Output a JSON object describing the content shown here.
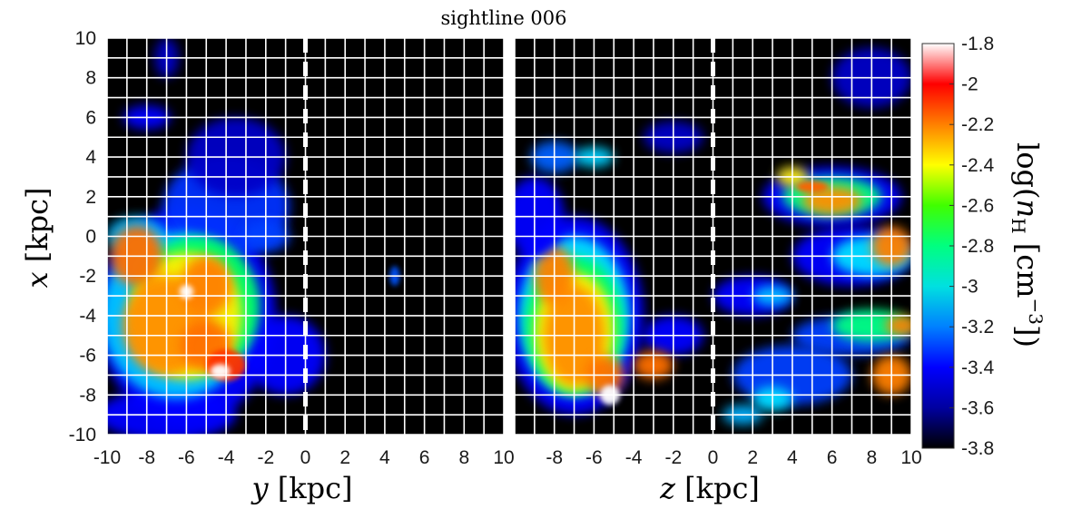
{
  "title": "sightline 006",
  "chart_data": [
    {
      "type": "heatmap",
      "name": "left",
      "xlabel": "y [kpc]",
      "xlabel_var": "y",
      "xlabel_unit": " [kpc]",
      "ylabel": "x [kpc]",
      "ylabel_var": "x",
      "ylabel_unit": " [kpc]",
      "xlim": [
        -10,
        10
      ],
      "ylim": [
        -10,
        10
      ],
      "xticks": [
        "-10",
        "-8",
        "-6",
        "-4",
        "-2",
        "0",
        "2",
        "4",
        "6",
        "8",
        "10"
      ],
      "yticks": [
        "10",
        "8",
        "6",
        "4",
        "2",
        "0",
        "-2",
        "-4",
        "-6",
        "-8",
        "-10"
      ],
      "grid": true,
      "sightline_position": 0
    },
    {
      "type": "heatmap",
      "name": "right",
      "xlabel": "z [kpc]",
      "xlabel_var": "z",
      "xlabel_unit": " [kpc]",
      "xlim": [
        -10,
        10
      ],
      "ylim": [
        -10,
        10
      ],
      "xticks": [
        "-8",
        "-6",
        "-4",
        "-2",
        "0",
        "2",
        "4",
        "6",
        "8",
        "10"
      ],
      "grid": true,
      "sightline_position": 0
    }
  ],
  "colorbar": {
    "label": "log(n_H [cm^-3])",
    "label_parts": {
      "pre": "log(",
      "var": "n",
      "sub": "H",
      "mid": " [cm",
      "sup": "−3",
      "post": "])"
    },
    "range": [
      -3.8,
      -1.8
    ],
    "ticks": [
      "-1.8",
      "-2",
      "-2.2",
      "-2.4",
      "-2.6",
      "-2.8",
      "-3",
      "-3.2",
      "-3.4",
      "-3.6",
      "-3.8"
    ],
    "colormap": [
      "#000000",
      "#0000a0",
      "#0000ff",
      "#0080ff",
      "#00e0e0",
      "#00ff80",
      "#40ff00",
      "#ffff00",
      "#ff8000",
      "#ff0000",
      "#ffffff"
    ]
  }
}
